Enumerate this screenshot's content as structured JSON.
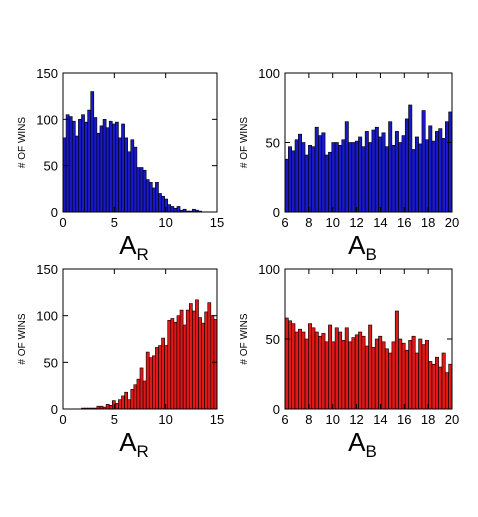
{
  "chart_data": [
    {
      "type": "bar",
      "panel": "top-left",
      "color": "#1919c8",
      "ylabel": "# OF WINS",
      "xlabel_main": "A",
      "xlabel_sub": "R",
      "xlim": [
        0,
        15
      ],
      "ylim": [
        0,
        150
      ],
      "xticks": [
        "0",
        "5",
        "10",
        "15"
      ],
      "yticks": [
        "0",
        "50",
        "100",
        "150"
      ],
      "bin_start": 0,
      "bin_width": 0.3,
      "values": [
        80,
        105,
        103,
        98,
        82,
        100,
        105,
        97,
        110,
        130,
        102,
        85,
        93,
        100,
        91,
        98,
        95,
        97,
        80,
        95,
        80,
        65,
        78,
        70,
        48,
        48,
        45,
        35,
        32,
        26,
        32,
        20,
        17,
        14,
        8,
        6,
        4,
        6,
        2,
        3,
        1,
        1,
        3,
        2,
        1,
        0,
        0,
        0,
        0,
        0
      ]
    },
    {
      "type": "bar",
      "panel": "top-right",
      "color": "#1919c8",
      "ylabel": "# OF WINS",
      "xlabel_main": "A",
      "xlabel_sub": "B",
      "xlim": [
        6,
        20
      ],
      "ylim": [
        0,
        100
      ],
      "xticks": [
        "6",
        "8",
        "10",
        "12",
        "14",
        "16",
        "18",
        "20"
      ],
      "yticks": [
        "0",
        "50",
        "100"
      ],
      "bin_start": 6,
      "bin_width": 0.28,
      "values": [
        38,
        47,
        44,
        52,
        56,
        50,
        41,
        48,
        47,
        61,
        55,
        57,
        41,
        43,
        50,
        50,
        48,
        52,
        65,
        50,
        50,
        51,
        54,
        47,
        58,
        50,
        59,
        61,
        54,
        57,
        47,
        65,
        48,
        58,
        50,
        55,
        67,
        77,
        45,
        54,
        49,
        73,
        52,
        62,
        51,
        58,
        60,
        53,
        65,
        72
      ]
    },
    {
      "type": "bar",
      "panel": "bottom-left",
      "color": "#e01818",
      "ylabel": "# OF WINS",
      "xlabel_main": "A",
      "xlabel_sub": "R",
      "xlim": [
        0,
        15
      ],
      "ylim": [
        0,
        150
      ],
      "xticks": [
        "0",
        "5",
        "10",
        "15"
      ],
      "yticks": [
        "0",
        "50",
        "100",
        "150"
      ],
      "bin_start": 0,
      "bin_width": 0.3,
      "values": [
        0,
        0,
        0,
        0,
        0,
        0,
        1,
        1,
        1,
        1,
        1,
        3,
        3,
        2,
        5,
        4,
        9,
        6,
        10,
        14,
        18,
        10,
        21,
        26,
        32,
        44,
        30,
        61,
        55,
        57,
        66,
        68,
        76,
        68,
        95,
        97,
        93,
        100,
        106,
        90,
        106,
        113,
        105,
        117,
        98,
        92,
        104,
        114,
        100,
        96
      ]
    },
    {
      "type": "bar",
      "panel": "bottom-right",
      "color": "#e01818",
      "ylabel": "# OF WINS",
      "xlabel_main": "A",
      "xlabel_sub": "B",
      "xlim": [
        6,
        20
      ],
      "ylim": [
        0,
        100
      ],
      "xticks": [
        "6",
        "8",
        "10",
        "12",
        "14",
        "16",
        "18",
        "20"
      ],
      "yticks": [
        "0",
        "50",
        "100"
      ],
      "bin_start": 6,
      "bin_width": 0.28,
      "values": [
        65,
        63,
        61,
        55,
        57,
        55,
        50,
        61,
        58,
        55,
        52,
        54,
        48,
        60,
        48,
        58,
        55,
        49,
        58,
        48,
        51,
        53,
        55,
        52,
        45,
        60,
        44,
        50,
        52,
        48,
        43,
        40,
        48,
        70,
        50,
        47,
        42,
        49,
        52,
        40,
        50,
        46,
        49,
        34,
        32,
        37,
        30,
        40,
        26,
        32
      ]
    }
  ]
}
